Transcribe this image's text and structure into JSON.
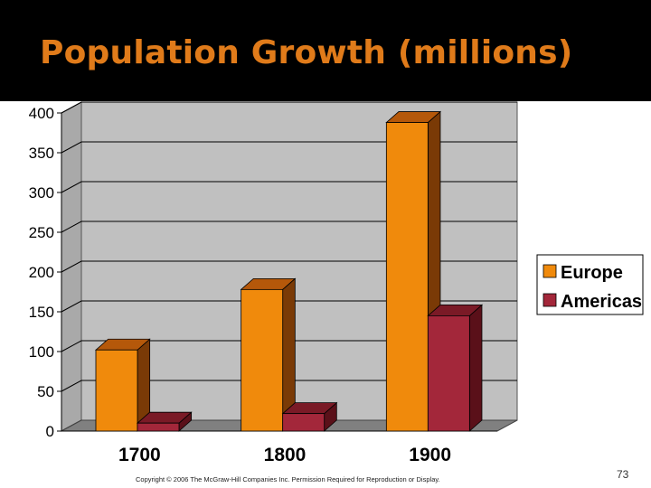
{
  "slide": {
    "title": "Population Growth (millions)",
    "copyright": "Copyright © 2006 The McGraw-Hill Companies Inc. Permission Required for Reproduction or Display.",
    "slide_number": "73"
  },
  "colors": {
    "title_bar": "#000000",
    "title_text": "#e07b1a",
    "plot_wall": "#c0c0c0",
    "floor": "#808080"
  },
  "chart_data": {
    "type": "bar",
    "title": "Population Growth (millions)",
    "xlabel": "",
    "ylabel": "",
    "categories": [
      "1700",
      "1800",
      "1900"
    ],
    "series": [
      {
        "name": "Europe",
        "values": [
          102,
          178,
          388
        ],
        "color": "#f08a0c",
        "side": "#7a3a06",
        "top": "#b5580a"
      },
      {
        "name": "Americas",
        "values": [
          10,
          22,
          145
        ],
        "color": "#a3273a",
        "side": "#5a1019",
        "top": "#7a1a26"
      }
    ],
    "ylim": [
      0,
      400
    ],
    "yticks": [
      0,
      50,
      100,
      150,
      200,
      250,
      300,
      350,
      400
    ],
    "grid": true,
    "legend": "right"
  }
}
